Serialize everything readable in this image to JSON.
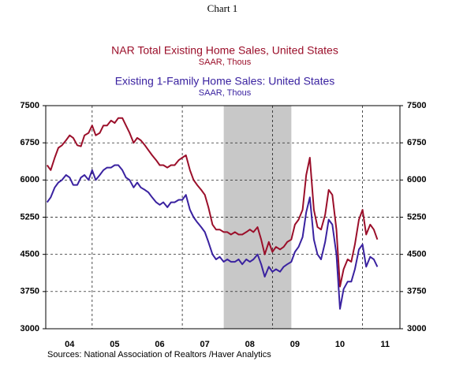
{
  "chart_data": {
    "type": "line",
    "title": "Chart 1",
    "source": "Sources:  National Association of Realtors /Haver Analytics",
    "x": [
      2004.0,
      2004.08,
      2004.17,
      2004.25,
      2004.33,
      2004.42,
      2004.5,
      2004.58,
      2004.67,
      2004.75,
      2004.83,
      2004.92,
      2005.0,
      2005.08,
      2005.17,
      2005.25,
      2005.33,
      2005.42,
      2005.5,
      2005.58,
      2005.67,
      2005.75,
      2005.83,
      2005.92,
      2006.0,
      2006.08,
      2006.17,
      2006.25,
      2006.33,
      2006.42,
      2006.5,
      2006.58,
      2006.67,
      2006.75,
      2006.83,
      2006.92,
      2007.0,
      2007.08,
      2007.17,
      2007.25,
      2007.33,
      2007.42,
      2007.5,
      2007.58,
      2007.67,
      2007.75,
      2007.83,
      2007.92,
      2008.0,
      2008.08,
      2008.17,
      2008.25,
      2008.33,
      2008.42,
      2008.5,
      2008.58,
      2008.67,
      2008.75,
      2008.83,
      2008.92,
      2009.0,
      2009.08,
      2009.17,
      2009.25,
      2009.33,
      2009.42,
      2009.5,
      2009.58,
      2009.67,
      2009.75,
      2009.83,
      2009.92,
      2010.0,
      2010.08,
      2010.17,
      2010.25,
      2010.33,
      2010.42,
      2010.5,
      2010.58,
      2010.67,
      2010.75,
      2010.83,
      2010.92,
      2011.0,
      2011.08,
      2011.17,
      2011.25,
      2011.33
    ],
    "series": [
      {
        "name": "NAR Total Existing Home Sales, United States",
        "unit": "SAAR, Thous",
        "color": "#9b0f2a",
        "values": [
          6300,
          6200,
          6450,
          6650,
          6700,
          6800,
          6900,
          6850,
          6700,
          6680,
          6900,
          6950,
          7100,
          6900,
          6950,
          7100,
          7100,
          7200,
          7150,
          7250,
          7250,
          7100,
          6950,
          6750,
          6850,
          6800,
          6700,
          6600,
          6500,
          6400,
          6300,
          6300,
          6250,
          6300,
          6300,
          6400,
          6450,
          6500,
          6200,
          6000,
          5900,
          5800,
          5700,
          5450,
          5100,
          5000,
          5000,
          4950,
          4950,
          4900,
          4950,
          4900,
          4900,
          4950,
          5000,
          4950,
          5050,
          4800,
          4500,
          4750,
          4550,
          4650,
          4600,
          4650,
          4750,
          4800,
          5100,
          5200,
          5400,
          6100,
          6450,
          5400,
          5050,
          5000,
          5300,
          5800,
          5700,
          5000,
          3850,
          4200,
          4400,
          4350,
          4700,
          5200,
          5400,
          4900,
          5100,
          5000,
          4800
        ]
      },
      {
        "name": "Existing 1-Family Home Sales: United States",
        "unit": "SAAR, Thous",
        "color": "#3a22a0",
        "values": [
          5550,
          5650,
          5850,
          5950,
          6000,
          6100,
          6050,
          5900,
          5900,
          6050,
          6100,
          6000,
          6200,
          6000,
          6100,
          6200,
          6250,
          6250,
          6300,
          6300,
          6200,
          6050,
          6000,
          5850,
          5950,
          5850,
          5800,
          5750,
          5650,
          5550,
          5500,
          5550,
          5450,
          5550,
          5550,
          5600,
          5600,
          5700,
          5400,
          5250,
          5150,
          5050,
          4950,
          4750,
          4500,
          4400,
          4450,
          4350,
          4400,
          4350,
          4350,
          4400,
          4300,
          4400,
          4350,
          4400,
          4500,
          4300,
          4050,
          4250,
          4150,
          4200,
          4150,
          4250,
          4300,
          4350,
          4550,
          4650,
          4850,
          5350,
          5650,
          4800,
          4500,
          4400,
          4750,
          5200,
          5100,
          4500,
          3400,
          3800,
          3950,
          3950,
          4200,
          4600,
          4700,
          4250,
          4450,
          4400,
          4250
        ]
      }
    ],
    "xlim": [
      2003.97,
      2011.83
    ],
    "xticks": [
      {
        "value": 2004.5,
        "label": "04"
      },
      {
        "value": 2005.5,
        "label": "05"
      },
      {
        "value": 2006.5,
        "label": "06"
      },
      {
        "value": 2007.5,
        "label": "07"
      },
      {
        "value": 2008.5,
        "label": "08"
      },
      {
        "value": 2009.5,
        "label": "09"
      },
      {
        "value": 2010.5,
        "label": "10"
      },
      {
        "value": 2011.5,
        "label": "11"
      }
    ],
    "xgrid": [
      2005,
      2007,
      2009,
      2011
    ],
    "shade": [
      2007.92,
      2009.42
    ],
    "ylim": [
      3000,
      7500
    ],
    "yticks": [
      3000,
      3750,
      4500,
      5250,
      6000,
      6750,
      7500
    ],
    "y2lim": [
      3000,
      7500
    ],
    "y2ticks": [
      3000,
      3750,
      4500,
      5250,
      6000,
      6750,
      7500
    ],
    "grid": true
  }
}
